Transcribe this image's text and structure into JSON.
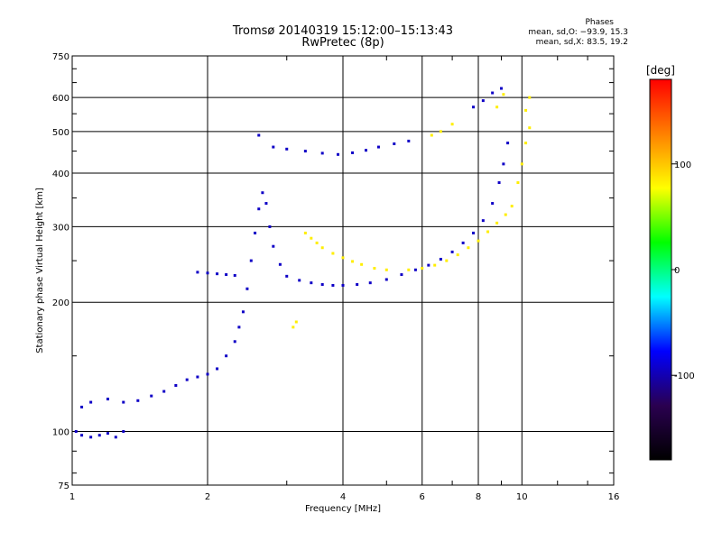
{
  "title_lines": [
    "Tromsø 20140319 15:12:00–15:13:43",
    "RwPretec (8p)"
  ],
  "phases_box": {
    "title": "Phases",
    "line_o": "mean, sd,O: −93.9, 15.3",
    "line_x": "mean, sd,X:  83.5, 19.2"
  },
  "chart_data": {
    "type": "scatter",
    "title": "Tromsø 20140319 15:12:00–15:13:43",
    "subtitle": "RwPretec (8p)",
    "xlabel": "Frequency [MHz]",
    "ylabel": "Stationary phase Virtual Height [km]",
    "x_scale": "log",
    "y_scale": "log",
    "xlim": [
      1,
      16
    ],
    "ylim": [
      75,
      750
    ],
    "x_ticks": [
      1,
      2,
      4,
      6,
      8,
      10,
      16
    ],
    "y_ticks": [
      75,
      100,
      200,
      300,
      400,
      500,
      600,
      750
    ],
    "grid": true,
    "colorbar": {
      "label": "[deg]",
      "range": [
        -180,
        180
      ],
      "ticks": [
        -100,
        0,
        100
      ],
      "colors": [
        "#000000",
        "#2a0050",
        "#0000ff",
        "#00ffff",
        "#00ff00",
        "#ffff00",
        "#ff8000",
        "#ff0000"
      ]
    },
    "series": [
      {
        "name": "O-mode",
        "phase": -94,
        "points": [
          [
            1.02,
            100
          ],
          [
            1.05,
            98
          ],
          [
            1.1,
            97
          ],
          [
            1.15,
            98
          ],
          [
            1.2,
            99
          ],
          [
            1.25,
            97
          ],
          [
            1.3,
            100
          ],
          [
            1.05,
            114
          ],
          [
            1.1,
            117
          ],
          [
            1.2,
            119
          ],
          [
            1.3,
            117
          ],
          [
            1.4,
            118
          ],
          [
            1.5,
            121
          ],
          [
            1.6,
            124
          ],
          [
            1.7,
            128
          ],
          [
            1.8,
            132
          ],
          [
            1.9,
            134
          ],
          [
            2.0,
            136
          ],
          [
            2.1,
            140
          ],
          [
            2.2,
            150
          ],
          [
            2.3,
            162
          ],
          [
            2.35,
            175
          ],
          [
            2.4,
            190
          ],
          [
            2.45,
            215
          ],
          [
            2.5,
            250
          ],
          [
            2.55,
            290
          ],
          [
            2.6,
            330
          ],
          [
            2.65,
            360
          ],
          [
            2.7,
            340
          ],
          [
            2.75,
            300
          ],
          [
            2.8,
            270
          ],
          [
            2.9,
            245
          ],
          [
            1.9,
            235
          ],
          [
            2.0,
            234
          ],
          [
            2.1,
            233
          ],
          [
            2.2,
            232
          ],
          [
            2.3,
            231
          ],
          [
            3.0,
            230
          ],
          [
            3.2,
            225
          ],
          [
            3.4,
            222
          ],
          [
            3.6,
            220
          ],
          [
            3.8,
            219
          ],
          [
            4.0,
            219
          ],
          [
            4.3,
            220
          ],
          [
            4.6,
            222
          ],
          [
            5.0,
            226
          ],
          [
            5.4,
            232
          ],
          [
            5.8,
            238
          ],
          [
            6.2,
            244
          ],
          [
            6.6,
            252
          ],
          [
            7.0,
            262
          ],
          [
            7.4,
            275
          ],
          [
            7.8,
            290
          ],
          [
            8.2,
            310
          ],
          [
            8.6,
            340
          ],
          [
            8.9,
            380
          ],
          [
            9.1,
            420
          ],
          [
            9.3,
            470
          ],
          [
            2.6,
            490
          ],
          [
            2.8,
            460
          ],
          [
            3.0,
            455
          ],
          [
            3.3,
            450
          ],
          [
            3.6,
            445
          ],
          [
            3.9,
            442
          ],
          [
            4.2,
            446
          ],
          [
            4.5,
            452
          ],
          [
            4.8,
            460
          ],
          [
            5.2,
            468
          ],
          [
            5.6,
            475
          ],
          [
            7.8,
            570
          ],
          [
            8.2,
            590
          ],
          [
            8.6,
            615
          ],
          [
            9.0,
            630
          ]
        ]
      },
      {
        "name": "X-mode",
        "phase": 84,
        "points": [
          [
            3.3,
            290
          ],
          [
            3.4,
            282
          ],
          [
            3.5,
            275
          ],
          [
            3.6,
            268
          ],
          [
            3.8,
            260
          ],
          [
            4.0,
            254
          ],
          [
            4.2,
            249
          ],
          [
            4.4,
            245
          ],
          [
            4.7,
            240
          ],
          [
            5.0,
            238
          ],
          [
            5.6,
            238
          ],
          [
            6.0,
            240
          ],
          [
            6.4,
            244
          ],
          [
            6.8,
            250
          ],
          [
            7.2,
            258
          ],
          [
            7.6,
            268
          ],
          [
            8.0,
            278
          ],
          [
            8.4,
            292
          ],
          [
            8.8,
            306
          ],
          [
            9.2,
            320
          ],
          [
            9.5,
            335
          ],
          [
            9.8,
            380
          ],
          [
            10.0,
            420
          ],
          [
            10.2,
            470
          ],
          [
            10.4,
            510
          ],
          [
            10.2,
            560
          ],
          [
            10.4,
            600
          ],
          [
            3.1,
            175
          ],
          [
            3.15,
            180
          ],
          [
            6.3,
            490
          ],
          [
            6.6,
            500
          ],
          [
            7.0,
            520
          ],
          [
            8.8,
            570
          ],
          [
            9.1,
            610
          ]
        ]
      }
    ]
  }
}
